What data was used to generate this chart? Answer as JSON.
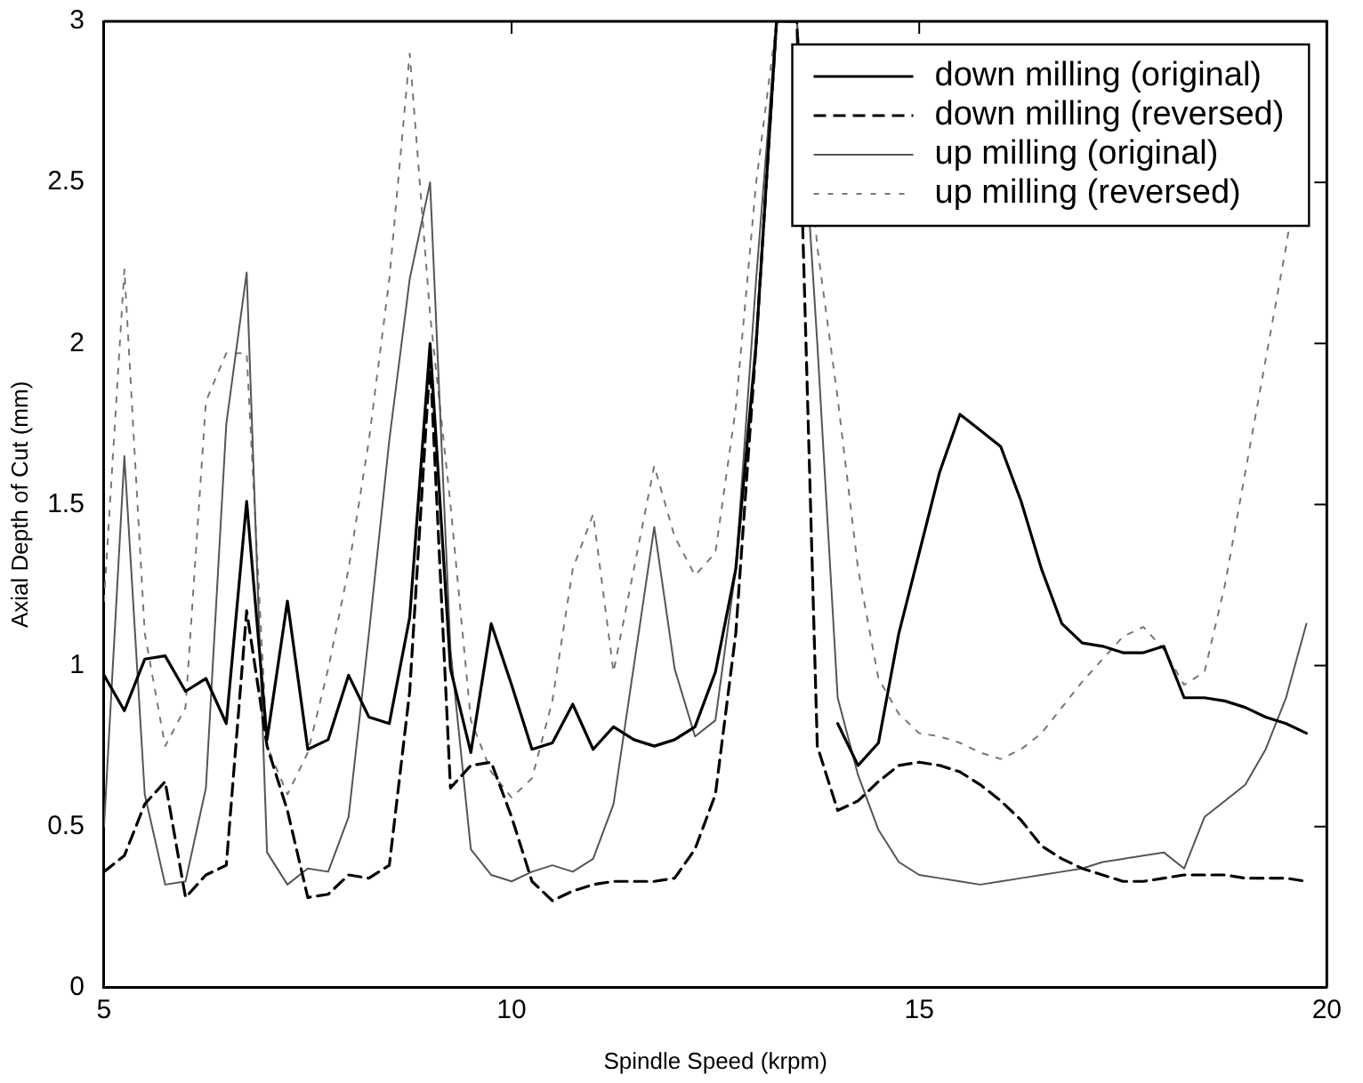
{
  "chart_data": {
    "type": "line",
    "xlabel": "Spindle Speed (krpm)",
    "ylabel": "Axial Depth of Cut (mm)",
    "x": [
      5,
      5.25,
      5.5,
      5.75,
      6,
      6.25,
      6.5,
      6.75,
      7,
      7.25,
      7.5,
      7.75,
      8,
      8.25,
      8.5,
      8.75,
      9,
      9.25,
      9.5,
      9.75,
      10,
      10.25,
      10.5,
      10.75,
      11,
      11.25,
      11.5,
      11.75,
      12,
      12.25,
      12.5,
      12.75,
      13,
      13.25,
      13.5,
      13.75,
      14,
      14.25,
      14.5,
      14.75,
      15,
      15.25,
      15.5,
      15.75,
      16,
      16.25,
      16.5,
      16.75,
      17,
      17.25,
      17.5,
      17.75,
      18,
      18.25,
      18.5,
      18.75,
      19,
      19.25,
      19.5,
      19.75
    ],
    "xlim": [
      5,
      20
    ],
    "xticks": [
      5,
      10,
      15,
      20
    ],
    "ylim": [
      0,
      3
    ],
    "yticks": [
      0,
      0.5,
      1,
      1.5,
      2,
      2.5,
      3
    ],
    "grid": false,
    "legend": "top right",
    "marker": "none",
    "series": [
      {
        "name": "down milling (original)",
        "color": "#000000",
        "line_style": "solid",
        "values": [
          0.97,
          0.86,
          1.02,
          1.03,
          0.92,
          0.96,
          0.82,
          1.51,
          0.77,
          1.2,
          0.74,
          0.77,
          0.97,
          0.84,
          0.82,
          1.15,
          2.0,
          0.99,
          0.73,
          1.13,
          0.94,
          0.74,
          0.76,
          0.88,
          0.74,
          0.81,
          0.77,
          0.75,
          0.77,
          0.81,
          0.98,
          1.3,
          2.0,
          3,
          3,
          null,
          0.82,
          0.69,
          0.76,
          1.1,
          1.35,
          1.6,
          1.78,
          1.73,
          1.68,
          1.51,
          1.3,
          1.13,
          1.07,
          1.06,
          1.04,
          1.04,
          1.06,
          0.9,
          0.9,
          0.89,
          0.87,
          0.84,
          0.82,
          0.79
        ]
      },
      {
        "name": "down milling (reversed)",
        "color": "#000000",
        "line_style": "dashed",
        "values": [
          0.36,
          0.41,
          0.57,
          0.64,
          0.28,
          0.35,
          0.38,
          1.17,
          0.75,
          0.55,
          0.28,
          0.29,
          0.35,
          0.34,
          0.38,
          0.92,
          1.95,
          0.62,
          0.69,
          0.7,
          0.53,
          0.33,
          0.27,
          0.3,
          0.32,
          0.33,
          0.33,
          0.33,
          0.34,
          0.43,
          0.6,
          1.1,
          2.0,
          3,
          3,
          0.75,
          0.55,
          0.58,
          0.64,
          0.69,
          0.7,
          0.69,
          0.67,
          0.63,
          0.58,
          0.52,
          0.44,
          0.4,
          0.37,
          0.35,
          0.33,
          0.33,
          0.34,
          0.35,
          0.35,
          0.35,
          0.34,
          0.34,
          0.34,
          0.33
        ]
      },
      {
        "name": "up milling (original)",
        "color": "#555555",
        "line_style": "solid",
        "values": [
          0.5,
          1.65,
          0.6,
          0.32,
          0.33,
          0.62,
          1.75,
          2.22,
          0.42,
          0.32,
          0.37,
          0.36,
          0.53,
          1.1,
          1.7,
          2.2,
          2.5,
          1.05,
          0.43,
          0.35,
          0.33,
          0.36,
          0.38,
          0.36,
          0.4,
          0.57,
          1.0,
          1.43,
          0.99,
          0.78,
          0.83,
          1.3,
          2.2,
          3,
          3,
          2.0,
          0.9,
          0.66,
          0.49,
          0.39,
          0.35,
          0.34,
          0.33,
          0.32,
          0.33,
          0.34,
          0.35,
          0.36,
          0.37,
          0.39,
          0.4,
          0.41,
          0.42,
          0.37,
          0.53,
          0.58,
          0.63,
          0.74,
          0.9,
          1.13
        ]
      },
      {
        "name": "up milling (reversed)",
        "color": "#777777",
        "line_style": "dotted",
        "values": [
          1.2,
          2.23,
          1.1,
          0.75,
          0.87,
          1.82,
          1.97,
          1.97,
          0.75,
          0.6,
          0.73,
          0.99,
          1.3,
          1.7,
          2.2,
          2.9,
          2.09,
          1.5,
          0.83,
          0.67,
          0.59,
          0.65,
          0.89,
          1.3,
          1.47,
          0.98,
          1.3,
          1.62,
          1.4,
          1.28,
          1.35,
          1.8,
          2.5,
          3,
          3,
          2.3,
          1.83,
          1.3,
          0.96,
          0.85,
          0.79,
          0.78,
          0.76,
          0.73,
          0.71,
          0.74,
          0.79,
          0.87,
          0.95,
          1.02,
          1.09,
          1.12,
          1.05,
          0.94,
          0.98,
          1.25,
          1.6,
          1.95,
          2.3,
          2.7
        ]
      }
    ]
  }
}
